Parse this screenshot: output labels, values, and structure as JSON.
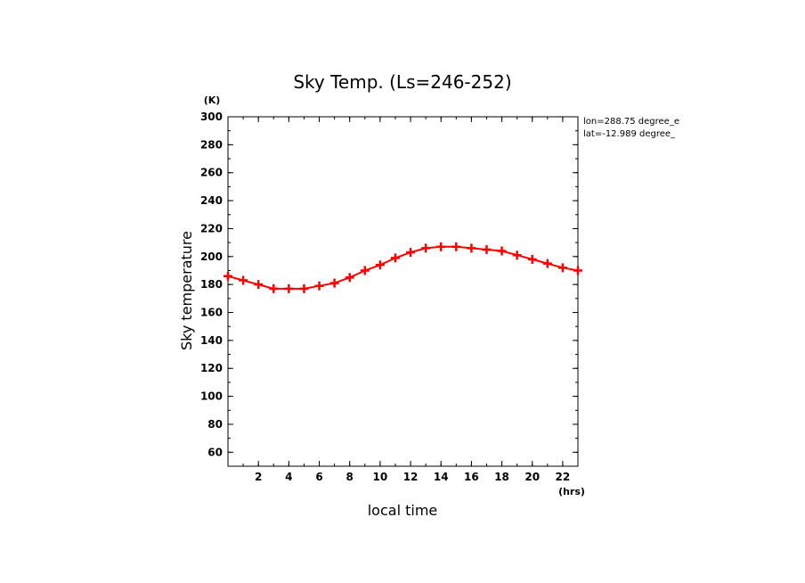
{
  "chart_data": {
    "type": "line",
    "title": "Sky Temp. (Ls=246-252)",
    "xlabel": "local time",
    "ylabel": "Sky temperature",
    "x_unit": "(hrs)",
    "y_unit": "(K)",
    "xlim": [
      0,
      23
    ],
    "ylim": [
      50,
      300
    ],
    "x_ticks": [
      2,
      4,
      6,
      8,
      10,
      12,
      14,
      16,
      18,
      20,
      22
    ],
    "y_ticks": [
      60,
      80,
      100,
      120,
      140,
      160,
      180,
      200,
      220,
      240,
      260,
      280,
      300
    ],
    "annotations": [
      "lon=288.75 degree_e",
      "lat=-12.989 degree_"
    ],
    "line_color": "#ff0000",
    "marker": "plus",
    "series": [
      {
        "x": [
          0,
          1,
          2,
          3,
          4,
          5,
          6,
          7,
          8,
          9,
          10,
          11,
          12,
          13,
          14,
          15,
          16,
          17,
          18,
          19,
          20,
          21,
          22,
          23
        ],
        "values": [
          186,
          183,
          180,
          177,
          177,
          177,
          179,
          181,
          185,
          190,
          194,
          199,
          203,
          206,
          207,
          207,
          206,
          205,
          204,
          201,
          198,
          195,
          192,
          190
        ]
      }
    ]
  }
}
